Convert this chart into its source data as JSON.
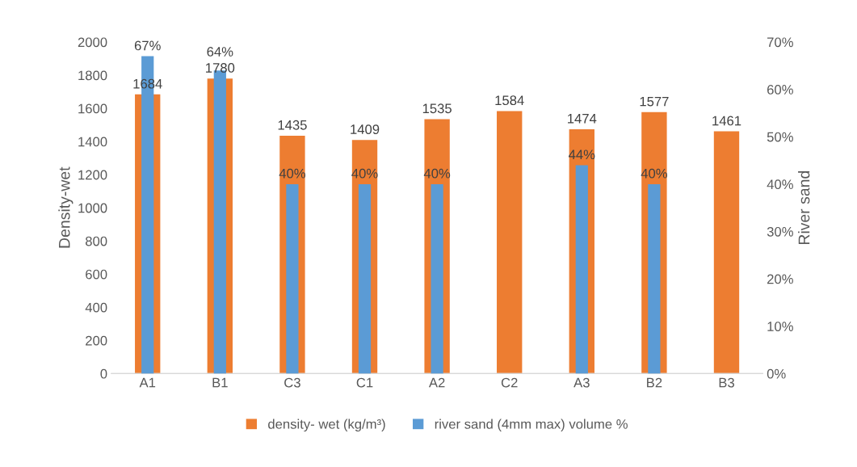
{
  "chart_data": {
    "type": "bar",
    "categories": [
      "A1",
      "B1",
      "C3",
      "C1",
      "A2",
      "C2",
      "A3",
      "B2",
      "B3"
    ],
    "ylabel": "Density-wet",
    "y2label": "River sand",
    "ylim": [
      0,
      2000
    ],
    "yticks": [
      0,
      200,
      400,
      600,
      800,
      1000,
      1200,
      1400,
      1600,
      1800,
      2000
    ],
    "y2lim": [
      0,
      70
    ],
    "y2ticks": [
      {
        "value": 0,
        "label": "0%"
      },
      {
        "value": 10,
        "label": "10%"
      },
      {
        "value": 20,
        "label": "20%"
      },
      {
        "value": 30,
        "label": "30%"
      },
      {
        "value": 40,
        "label": "40%"
      },
      {
        "value": 50,
        "label": "50%"
      },
      {
        "value": 60,
        "label": "60%"
      },
      {
        "value": 70,
        "label": "70%"
      }
    ],
    "legend": "bottom",
    "grid": false,
    "series": [
      {
        "name": "density- wet (kg/m³)",
        "color": "#ed7d31",
        "values": [
          1684,
          1780,
          1435,
          1409,
          1535,
          1584,
          1474,
          1577,
          1461
        ],
        "value_labels": [
          "1684",
          "1780",
          "1435",
          "1409",
          "1535",
          "1584",
          "1474",
          "1577",
          "1461"
        ]
      },
      {
        "name": "river sand (4mm max) volume %",
        "color": "#5b9bd5",
        "axis": "y2",
        "values": [
          67,
          64,
          40,
          40,
          40,
          null,
          44,
          40,
          null
        ],
        "value_labels": [
          "67%",
          "64%",
          "40%",
          "40%",
          "40%",
          null,
          "44%",
          "40%",
          null
        ]
      }
    ]
  }
}
